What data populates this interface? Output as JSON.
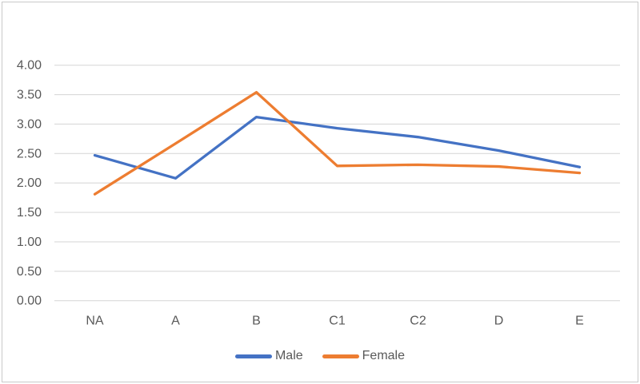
{
  "chart_data": {
    "type": "line",
    "title": "",
    "xlabel": "",
    "ylabel": "",
    "categories": [
      "NA",
      "A",
      "B",
      "C1",
      "C2",
      "D",
      "E"
    ],
    "series": [
      {
        "name": "Male",
        "color": "#4472C4",
        "values": [
          2.47,
          2.08,
          3.12,
          2.93,
          2.78,
          2.55,
          2.27
        ]
      },
      {
        "name": "Female",
        "color": "#ED7D31",
        "values": [
          1.81,
          2.67,
          3.54,
          2.29,
          2.31,
          2.28,
          2.17
        ]
      }
    ],
    "ylim": [
      0,
      4
    ],
    "ytick_step": 0.5,
    "ytick_labels": [
      "0.00",
      "0.50",
      "1.00",
      "1.50",
      "2.00",
      "2.50",
      "3.00",
      "3.50",
      "4.00"
    ],
    "grid": true,
    "legend_position": "bottom",
    "colors": {
      "gridline": "#D9D9D9",
      "axis_text": "#595959",
      "frame_border": "#C9C9C9",
      "background": "#FFFFFF"
    }
  }
}
